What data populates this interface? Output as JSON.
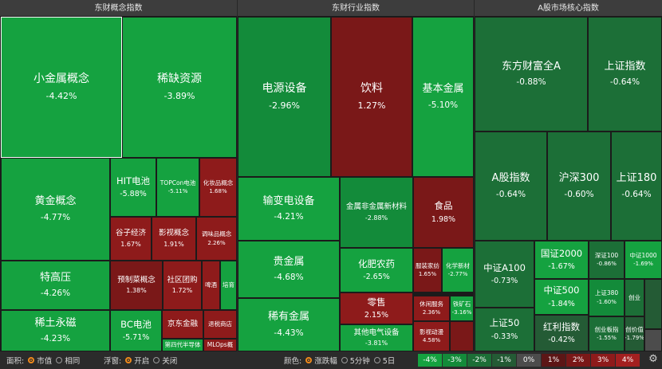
{
  "panels": [
    {
      "title": "东财概念指数"
    },
    {
      "title": "东财行业指数"
    },
    {
      "title": "A股市场核心指数"
    }
  ],
  "tiles": [
    {
      "name": "小金属概念",
      "pct": "-4.42%"
    },
    {
      "name": "稀缺资源",
      "pct": "-3.89%"
    },
    {
      "name": "黄金概念",
      "pct": "-4.77%"
    },
    {
      "name": "特高压",
      "pct": "-4.26%"
    },
    {
      "name": "稀土永磁",
      "pct": "-4.23%"
    },
    {
      "name": "HIT电池",
      "pct": "-5.88%"
    },
    {
      "name": "TOPCon电池",
      "pct": "-5.11%"
    },
    {
      "name": "化妆品概念",
      "pct": "1.68%"
    },
    {
      "name": "谷子经济",
      "pct": "1.67%"
    },
    {
      "name": "影视概念",
      "pct": "1.91%"
    },
    {
      "name": "调味品概念",
      "pct": "2.26%"
    },
    {
      "name": "预制菜概念",
      "pct": "1.38%"
    },
    {
      "name": "社区团购",
      "pct": "1.72%"
    },
    {
      "name": "啤酒",
      "pct": ""
    },
    {
      "name": "培育",
      "pct": ""
    },
    {
      "name": "BC电池",
      "pct": "-5.71%"
    },
    {
      "name": "京东金融",
      "pct": ""
    },
    {
      "name": "退税商店",
      "pct": ""
    },
    {
      "name": "第四代半导体",
      "pct": ""
    },
    {
      "name": "MLOps概",
      "pct": ""
    },
    {
      "name": "电源设备",
      "pct": "-2.96%"
    },
    {
      "name": "饮料",
      "pct": "1.27%"
    },
    {
      "name": "基本金属",
      "pct": "-5.10%"
    },
    {
      "name": "输变电设备",
      "pct": "-4.21%"
    },
    {
      "name": "金属非金属新材料",
      "pct": "-2.88%"
    },
    {
      "name": "食品",
      "pct": "1.98%"
    },
    {
      "name": "贵金属",
      "pct": "-4.68%"
    },
    {
      "name": "化肥农药",
      "pct": "-2.65%"
    },
    {
      "name": "服装家纺",
      "pct": "1.65%"
    },
    {
      "name": "化学新材",
      "pct": "-2.77%"
    },
    {
      "name": "稀有金属",
      "pct": "-4.43%"
    },
    {
      "name": "零售",
      "pct": "2.15%"
    },
    {
      "name": "休闲服务",
      "pct": "2.36%"
    },
    {
      "name": "铁矿石",
      "pct": "-3.16%"
    },
    {
      "name": "其他电气设备",
      "pct": "-3.81%"
    },
    {
      "name": "影视动漫",
      "pct": "4.58%"
    },
    {
      "name": "东方财富全A",
      "pct": "-0.88%"
    },
    {
      "name": "上证指数",
      "pct": "-0.64%"
    },
    {
      "name": "A股指数",
      "pct": "-0.64%"
    },
    {
      "name": "沪深300",
      "pct": "-0.60%"
    },
    {
      "name": "上证180",
      "pct": "-0.64%"
    },
    {
      "name": "中证A100",
      "pct": "-0.73%"
    },
    {
      "name": "国证2000",
      "pct": "-1.67%"
    },
    {
      "name": "深证100",
      "pct": "-0.86%"
    },
    {
      "name": "中证1000",
      "pct": "-1.69%"
    },
    {
      "name": "中证500",
      "pct": "-1.84%"
    },
    {
      "name": "上证380",
      "pct": "-1.60%"
    },
    {
      "name": "创业",
      "pct": ""
    },
    {
      "name": "上证50",
      "pct": "-0.33%"
    },
    {
      "name": "红利指数",
      "pct": "-0.42%"
    },
    {
      "name": "创业板指",
      "pct": "-1.55%"
    },
    {
      "name": "创价值",
      "pct": "-1.79%"
    }
  ],
  "footer": {
    "size_label": "面积:",
    "size_opt1": "市值",
    "size_opt2": "相同",
    "float_label": "浮窗:",
    "float_opt1": "开启",
    "float_opt2": "关闭",
    "color_label": "颜色:",
    "color_opt1": "涨跌幅",
    "color_opt2": "5分钟",
    "color_opt3": "5日",
    "legend": [
      "-4%",
      "-3%",
      "-2%",
      "-1%",
      "0%",
      "1%",
      "2%",
      "3%",
      "4%"
    ],
    "legend_colors": [
      "#15a240",
      "#138b3a",
      "#1c6f37",
      "#245b35",
      "#4c4c4c",
      "#5c1616",
      "#7a1818",
      "#8e1b1b",
      "#a32020"
    ]
  }
}
